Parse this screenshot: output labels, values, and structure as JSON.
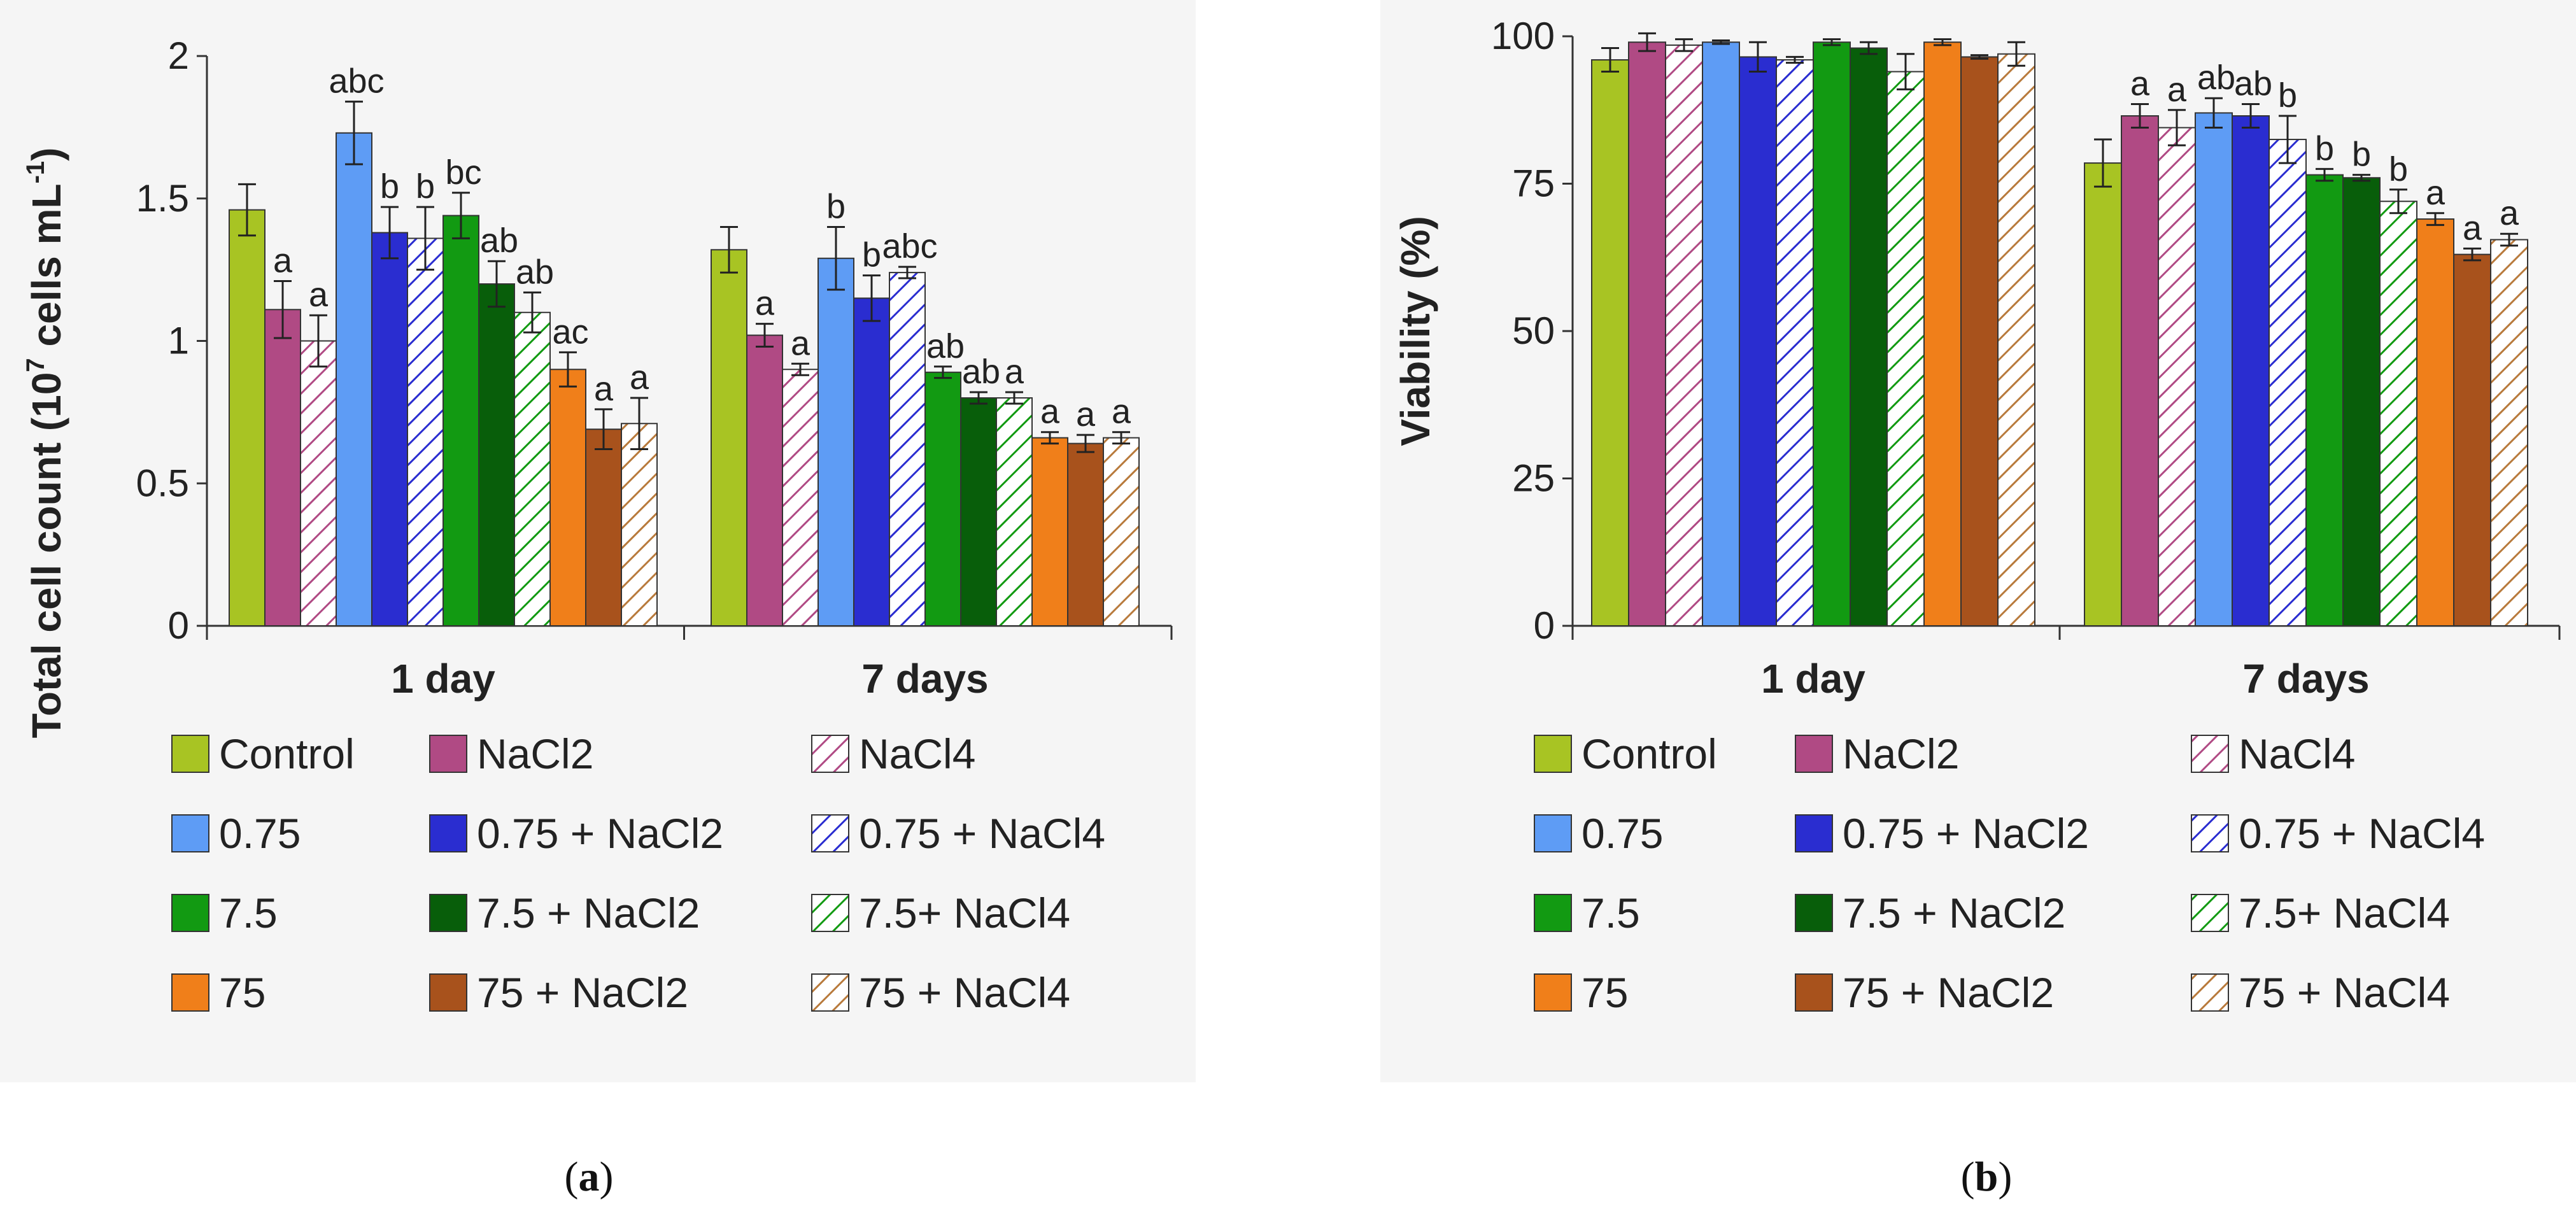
{
  "colors": {
    "Control": "#a8c423",
    "NaCl2": "#b04a84",
    "NaCl4": "#b04a84",
    "0.75": "#5e9cf5",
    "0.75 + NaCl2": "#2a2dd0",
    "0.75 + NaCl4": "#2a2dd0",
    "7.5": "#129a12",
    "7.5 + NaCl2": "#085e0a",
    "7.5+ NaCl4": "#129a12",
    "75": "#f07f1a",
    "75 + NaCl2": "#a8521c",
    "75 + NaCl4": "#b87a3c"
  },
  "chart_data": [
    {
      "type": "bar",
      "panel_label": "a",
      "title": "",
      "ylabel": "Total cell count (10",
      "ylabel_sup1": "7",
      "ylabel_mid": " cells mL",
      "ylabel_sup2": "-1",
      "ylabel_end": ")",
      "xlabel": "",
      "ylim": [
        0,
        2
      ],
      "yticks": [
        0,
        0.5,
        1,
        1.5,
        2
      ],
      "ytick_labels": [
        "0",
        "0.5",
        "1",
        "1.5",
        "2"
      ],
      "categories": [
        "1 day",
        "7 days"
      ],
      "series": [
        {
          "name": "Control",
          "hatched": false,
          "values": [
            1.46,
            1.32
          ],
          "errors": [
            0.09,
            0.08
          ],
          "labels": [
            "",
            ""
          ]
        },
        {
          "name": "NaCl2",
          "hatched": false,
          "values": [
            1.11,
            1.02
          ],
          "errors": [
            0.1,
            0.04
          ],
          "labels": [
            "a",
            "a"
          ]
        },
        {
          "name": "NaCl4",
          "hatched": true,
          "values": [
            1.0,
            0.9
          ],
          "errors": [
            0.09,
            0.02
          ],
          "labels": [
            "a",
            "a"
          ]
        },
        {
          "name": "0.75",
          "hatched": false,
          "values": [
            1.73,
            1.29
          ],
          "errors": [
            0.11,
            0.11
          ],
          "labels": [
            "abc",
            "b"
          ]
        },
        {
          "name": "0.75 + NaCl2",
          "hatched": false,
          "values": [
            1.38,
            1.15
          ],
          "errors": [
            0.09,
            0.08
          ],
          "labels": [
            "b",
            "b"
          ]
        },
        {
          "name": "0.75 + NaCl4",
          "hatched": true,
          "values": [
            1.36,
            1.24
          ],
          "errors": [
            0.11,
            0.02
          ],
          "labels": [
            "b",
            "abc"
          ]
        },
        {
          "name": "7.5",
          "hatched": false,
          "values": [
            1.44,
            0.89
          ],
          "errors": [
            0.08,
            0.02
          ],
          "labels": [
            "bc",
            "ab"
          ]
        },
        {
          "name": "7.5 + NaCl2",
          "hatched": false,
          "values": [
            1.2,
            0.8
          ],
          "errors": [
            0.08,
            0.02
          ],
          "labels": [
            "ab",
            "ab"
          ]
        },
        {
          "name": "7.5+ NaCl4",
          "hatched": true,
          "values": [
            1.1,
            0.8
          ],
          "errors": [
            0.07,
            0.02
          ],
          "labels": [
            "ab",
            "a"
          ]
        },
        {
          "name": "75",
          "hatched": false,
          "values": [
            0.9,
            0.66
          ],
          "errors": [
            0.06,
            0.02
          ],
          "labels": [
            "ac",
            "a"
          ]
        },
        {
          "name": "75 + NaCl2",
          "hatched": false,
          "values": [
            0.69,
            0.64
          ],
          "errors": [
            0.07,
            0.03
          ],
          "labels": [
            "a",
            "a"
          ]
        },
        {
          "name": "75 + NaCl4",
          "hatched": true,
          "values": [
            0.71,
            0.66
          ],
          "errors": [
            0.09,
            0.02
          ],
          "labels": [
            "a",
            "a"
          ]
        }
      ],
      "legend": [
        "Control",
        "NaCl2",
        "NaCl4",
        "0.75",
        "0.75 + NaCl2",
        "0.75 + NaCl4",
        "7.5",
        "7.5 + NaCl2",
        "7.5+ NaCl4",
        "75",
        "75 + NaCl2",
        "75 + NaCl4"
      ],
      "legend_labels": [
        "Control",
        "NaCl2",
        "NaCl4",
        "0.75",
        "0.75 + NaCl2",
        "0.75 + NaCl4",
        "7.5",
        "7.5 + NaCl2",
        "7.5+ NaCl4",
        "75",
        "75 + NaCl2",
        "75 + NaCl4"
      ]
    },
    {
      "type": "bar",
      "panel_label": "b",
      "title": "",
      "ylabel": "Viability (%)",
      "xlabel": "",
      "ylim": [
        0,
        100
      ],
      "yticks": [
        0,
        25,
        50,
        75,
        100
      ],
      "ytick_labels": [
        "0",
        "25",
        "50",
        "75",
        "100"
      ],
      "categories": [
        "1 day",
        "7 days"
      ],
      "series": [
        {
          "name": "Control",
          "hatched": false,
          "values": [
            96,
            78.5
          ],
          "errors": [
            2.0,
            4.0
          ],
          "labels": [
            "",
            ""
          ]
        },
        {
          "name": "NaCl2",
          "hatched": false,
          "values": [
            99,
            86.5
          ],
          "errors": [
            1.5,
            2.0
          ],
          "labels": [
            "",
            "a"
          ]
        },
        {
          "name": "NaCl4",
          "hatched": true,
          "values": [
            98.5,
            84.5
          ],
          "errors": [
            1.0,
            3.0
          ],
          "labels": [
            "",
            "a"
          ]
        },
        {
          "name": "0.75",
          "hatched": false,
          "values": [
            99,
            87.0
          ],
          "errors": [
            0.3,
            2.5
          ],
          "labels": [
            "",
            "ab"
          ]
        },
        {
          "name": "0.75 + NaCl2",
          "hatched": false,
          "values": [
            96.5,
            86.5
          ],
          "errors": [
            2.5,
            2.0
          ],
          "labels": [
            "",
            "ab"
          ]
        },
        {
          "name": "0.75 + NaCl4",
          "hatched": true,
          "values": [
            96,
            82.5
          ],
          "errors": [
            0.5,
            4.0
          ],
          "labels": [
            "",
            "b"
          ]
        },
        {
          "name": "7.5",
          "hatched": false,
          "values": [
            99,
            76.5
          ],
          "errors": [
            0.5,
            1.0
          ],
          "labels": [
            "",
            "b"
          ]
        },
        {
          "name": "7.5 + NaCl2",
          "hatched": false,
          "values": [
            98,
            76.0
          ],
          "errors": [
            1.0,
            0.5
          ],
          "labels": [
            "",
            "b"
          ]
        },
        {
          "name": "7.5+ NaCl4",
          "hatched": true,
          "values": [
            94,
            72.0
          ],
          "errors": [
            3.0,
            2.0
          ],
          "labels": [
            "",
            "b"
          ]
        },
        {
          "name": "75",
          "hatched": false,
          "values": [
            99,
            69.0
          ],
          "errors": [
            0.5,
            1.0
          ],
          "labels": [
            "",
            "a"
          ]
        },
        {
          "name": "75 + NaCl2",
          "hatched": false,
          "values": [
            96.5,
            63.0
          ],
          "errors": [
            0.3,
            1.0
          ],
          "labels": [
            "",
            "a"
          ]
        },
        {
          "name": "75 + NaCl4",
          "hatched": true,
          "values": [
            97,
            65.5
          ],
          "errors": [
            2.0,
            1.0
          ],
          "labels": [
            "",
            "a"
          ]
        }
      ],
      "legend": [
        "Control",
        "NaCl2",
        "NaCl4",
        "0.75",
        "0.75 + NaCl2",
        "0.75 + NaCl4",
        "7.5",
        "7.5 + NaCl2",
        "7.5+ NaCl4",
        "75",
        "75 + NaCl2",
        "75 + NaCl4"
      ],
      "legend_labels": [
        "Control",
        "NaCl2",
        "NaCl4",
        "0.75",
        "0.75 + NaCl2",
        "0.75 + NaCl4",
        "7.5",
        "7.5 + NaCl2",
        "7.5+ NaCl4",
        "75",
        "75 + NaCl2",
        "75 + NaCl4"
      ]
    }
  ]
}
